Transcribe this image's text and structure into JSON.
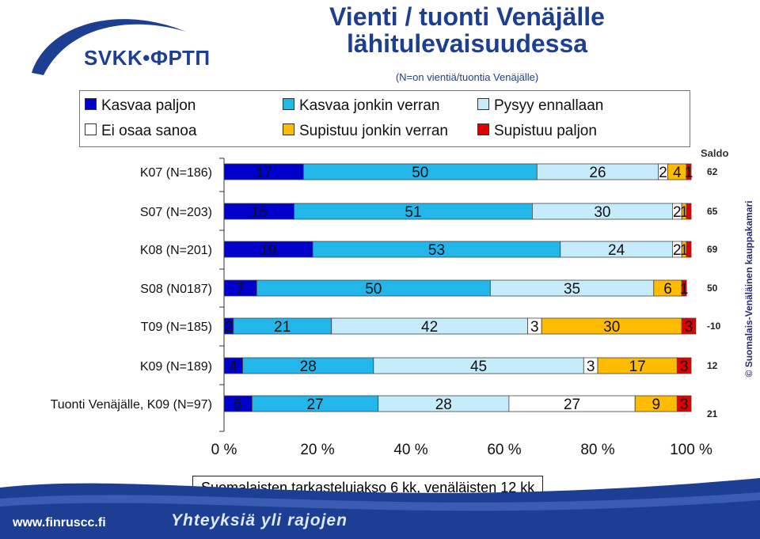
{
  "header": {
    "logo_text": "SVKK•ФРТП",
    "title_line1": "Vienti / tuonti Venäjälle",
    "title_line2": "lähitulevaisuudessa",
    "subtitle": "(N=on vientiä/tuontia Venäjälle)"
  },
  "legend": {
    "items": [
      {
        "label": "Kasvaa paljon",
        "color": "#0000cc"
      },
      {
        "label": "Kasvaa jonkin verran",
        "color": "#22b6ea"
      },
      {
        "label": "Pysyy ennallaan",
        "color": "#c6ecfb"
      },
      {
        "label": "Ei osaa sanoa",
        "color": "#ffffff"
      },
      {
        "label": "Supistuu jonkin verran",
        "color": "#ffbb00"
      },
      {
        "label": "Supistuu paljon",
        "color": "#e00000"
      }
    ]
  },
  "saldo": {
    "heading": "Saldo"
  },
  "chart_data": {
    "type": "bar",
    "orientation": "horizontal",
    "stacked": "100%",
    "categories": [
      "K07 (N=186)",
      "S07 (N=203)",
      "K08 (N=201)",
      "S08 (N0187)",
      "T09 (N=185)",
      "K09 (N=189)",
      "Tuonti Venäjälle, K09 (N=97)"
    ],
    "series_order": [
      "Kasvaa paljon",
      "Kasvaa jonkin verran",
      "Pysyy ennallaan",
      "Ei osaa sanoa",
      "Supistuu jonkin verran",
      "Supistuu paljon"
    ],
    "series_colors": [
      "#0000cc",
      "#22b6ea",
      "#c6ecfb",
      "#ffffff",
      "#ffbb00",
      "#e00000"
    ],
    "rows": [
      [
        17,
        50,
        26,
        2,
        4,
        1
      ],
      [
        15,
        51,
        30,
        2,
        1,
        1
      ],
      [
        19,
        53,
        24,
        2,
        1,
        1
      ],
      [
        7,
        50,
        35,
        0,
        6,
        1
      ],
      [
        2,
        21,
        42,
        3,
        30,
        3
      ],
      [
        4,
        28,
        45,
        3,
        17,
        3
      ],
      [
        6,
        27,
        28,
        27,
        9,
        3
      ]
    ],
    "data_labels": [
      [
        "17",
        "50",
        "26",
        "2",
        "4",
        "1"
      ],
      [
        "15",
        "51",
        "30",
        "2",
        "1",
        ""
      ],
      [
        "19",
        "53",
        "24",
        "2",
        "1",
        ""
      ],
      [
        "7",
        "50",
        "35",
        "",
        "6",
        "1"
      ],
      [
        "2",
        "21",
        "42",
        "3",
        "30",
        "3"
      ],
      [
        "4",
        "28",
        "45",
        "3",
        "17",
        "3"
      ],
      [
        "6",
        "27",
        "28",
        "27",
        "9",
        "3"
      ]
    ],
    "saldo": [
      "62",
      "65",
      "69",
      "50",
      "-10",
      "12",
      "21"
    ],
    "x_ticks": [
      "0 %",
      "20 %",
      "40 %",
      "60 %",
      "80 %",
      "100 %"
    ],
    "xlim": [
      0,
      100
    ],
    "xlabel": "Suomalaisten tarkastelujakso 6 kk, venäläisten 12 kk",
    "grid": false,
    "legend_position": "top"
  },
  "sidebar_text": "© Suomalais-Venäläinen kauppakamari",
  "footer": {
    "url": "www.finruscc.fi",
    "slogan": "Yhteyksiä yli rajojen"
  }
}
